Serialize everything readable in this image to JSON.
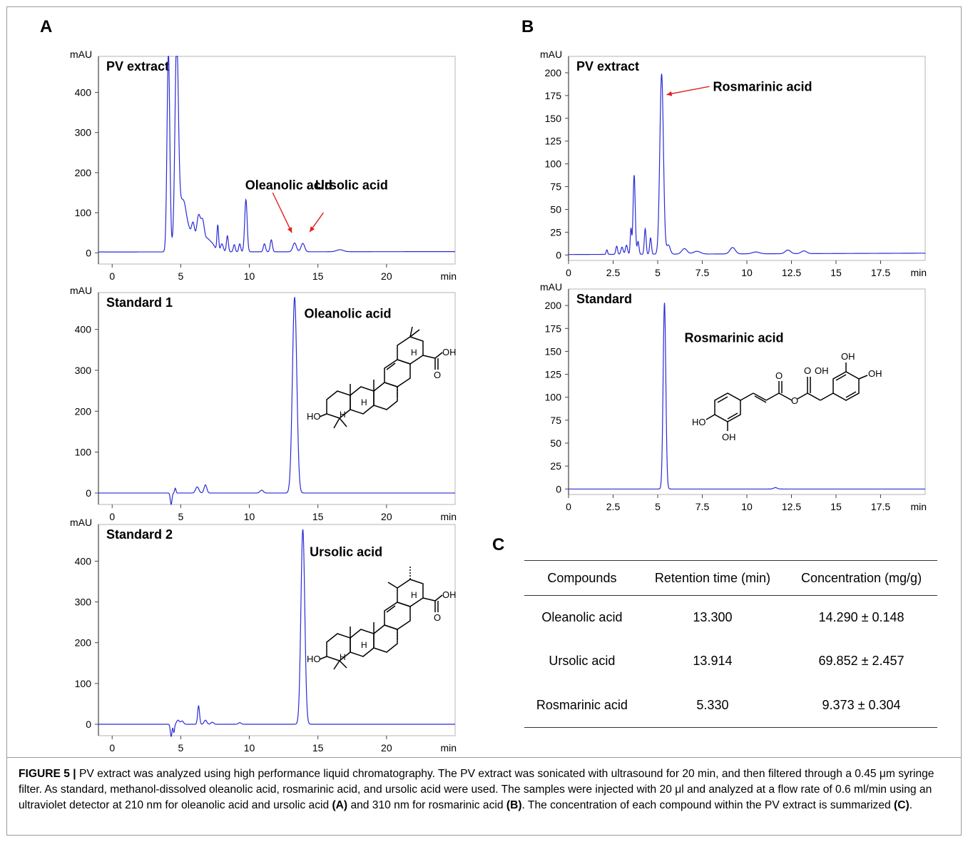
{
  "panels": {
    "A": "A",
    "B": "B",
    "C": "C"
  },
  "chart_data": [
    {
      "id": "chartA1",
      "type": "line",
      "title": "PV extract",
      "ylabel": "mAU",
      "xunit": "min",
      "xlim": [
        -1,
        25
      ],
      "ylim": [
        -28,
        490
      ],
      "xticks": [
        0,
        5,
        10,
        15,
        20
      ],
      "yticks": [
        0,
        100,
        200,
        300,
        400
      ],
      "baseline": 2,
      "tail": 1,
      "color": "#2b2bd6",
      "peaks": [
        {
          "x": 4.1,
          "h": 500,
          "w": 0.1
        },
        {
          "x": 4.7,
          "h": 470,
          "w": 0.12
        },
        {
          "x": 5.0,
          "h": 120,
          "w": 0.3
        },
        {
          "x": 5.3,
          "h": 40,
          "w": 0.15
        },
        {
          "x": 5.6,
          "h": 40,
          "w": 0.15
        },
        {
          "x": 5.9,
          "h": 65,
          "w": 0.12
        },
        {
          "x": 6.3,
          "h": 90,
          "w": 0.15
        },
        {
          "x": 6.6,
          "h": 60,
          "w": 0.12
        },
        {
          "x": 6.9,
          "h": 30,
          "w": 0.2
        },
        {
          "x": 7.3,
          "h": 18,
          "w": 0.2
        },
        {
          "x": 7.7,
          "h": 65,
          "w": 0.06
        },
        {
          "x": 8.0,
          "h": 20,
          "w": 0.1
        },
        {
          "x": 8.4,
          "h": 40,
          "w": 0.07
        },
        {
          "x": 8.9,
          "h": 18,
          "w": 0.07
        },
        {
          "x": 9.3,
          "h": 20,
          "w": 0.07
        },
        {
          "x": 9.75,
          "h": 130,
          "w": 0.09
        },
        {
          "x": 11.1,
          "h": 20,
          "w": 0.08
        },
        {
          "x": 11.6,
          "h": 30,
          "w": 0.08
        },
        {
          "x": 13.3,
          "h": 22,
          "w": 0.13
        },
        {
          "x": 13.9,
          "h": 21,
          "w": 0.13
        },
        {
          "x": 16.6,
          "h": 5,
          "w": 0.25
        }
      ],
      "annotations": [
        {
          "text": "Oleanolic acid",
          "tx": 9.7,
          "ty": 158,
          "ax1": 11.7,
          "ay1": 150,
          "ax2": 13.1,
          "ay2": 50
        },
        {
          "text": "Ursolic acid",
          "tx": 14.8,
          "ty": 158,
          "ax1": 15.4,
          "ay1": 100,
          "ax2": 14.4,
          "ay2": 52
        }
      ]
    },
    {
      "id": "chartA2",
      "type": "line",
      "title": "Standard 1",
      "ylabel": "mAU",
      "xunit": "min",
      "xlim": [
        -1,
        25
      ],
      "ylim": [
        -28,
        490
      ],
      "xticks": [
        0,
        5,
        10,
        15,
        20
      ],
      "yticks": [
        0,
        100,
        200,
        300,
        400
      ],
      "baseline": 0,
      "tail": 0,
      "color": "#2b2bd6",
      "peaks": [
        {
          "x": 4.3,
          "h": -28,
          "w": 0.06
        },
        {
          "x": 4.6,
          "h": 12,
          "w": 0.05
        },
        {
          "x": 6.2,
          "h": 15,
          "w": 0.12
        },
        {
          "x": 6.8,
          "h": 20,
          "w": 0.1
        },
        {
          "x": 10.9,
          "h": 7,
          "w": 0.12
        },
        {
          "x": 13.3,
          "h": 478,
          "w": 0.16
        }
      ],
      "annotations": [
        {
          "text": "Oleanolic acid",
          "tx": 14.0,
          "ty": 428
        }
      ]
    },
    {
      "id": "chartA3",
      "type": "line",
      "title": "Standard 2",
      "ylabel": "mAU",
      "xunit": "min",
      "xlim": [
        -1,
        25
      ],
      "ylim": [
        -28,
        490
      ],
      "xticks": [
        0,
        5,
        10,
        15,
        20
      ],
      "yticks": [
        0,
        100,
        200,
        300,
        400
      ],
      "baseline": 0,
      "tail": 0,
      "color": "#2b2bd6",
      "peaks": [
        {
          "x": 4.3,
          "h": -30,
          "w": 0.06
        },
        {
          "x": 4.5,
          "h": -20,
          "w": 0.05
        },
        {
          "x": 4.8,
          "h": 10,
          "w": 0.1
        },
        {
          "x": 5.1,
          "h": 8,
          "w": 0.1
        },
        {
          "x": 6.3,
          "h": 45,
          "w": 0.07
        },
        {
          "x": 6.8,
          "h": 10,
          "w": 0.1
        },
        {
          "x": 7.3,
          "h": 5,
          "w": 0.1
        },
        {
          "x": 9.3,
          "h": 4,
          "w": 0.1
        },
        {
          "x": 13.9,
          "h": 478,
          "w": 0.14
        }
      ],
      "annotations": [
        {
          "text": "Ursolic acid",
          "tx": 14.4,
          "ty": 412
        }
      ]
    },
    {
      "id": "chartB1",
      "type": "line",
      "title": "PV extract",
      "ylabel": "mAU",
      "xunit": "min",
      "xlim": [
        0,
        20
      ],
      "ylim": [
        -6,
        218
      ],
      "xticks": [
        0,
        2.5,
        5,
        7.5,
        10,
        12.5,
        15,
        17.5
      ],
      "yticks": [
        0,
        25,
        50,
        75,
        100,
        125,
        150,
        175,
        200
      ],
      "baseline": 0.5,
      "tail": 1.5,
      "color": "#2b2bd6",
      "peaks": [
        {
          "x": 2.15,
          "h": 5,
          "w": 0.04
        },
        {
          "x": 2.7,
          "h": 9,
          "w": 0.05
        },
        {
          "x": 3.0,
          "h": 8,
          "w": 0.06
        },
        {
          "x": 3.25,
          "h": 10,
          "w": 0.06
        },
        {
          "x": 3.5,
          "h": 28,
          "w": 0.04
        },
        {
          "x": 3.68,
          "h": 87,
          "w": 0.06
        },
        {
          "x": 3.9,
          "h": 14,
          "w": 0.05
        },
        {
          "x": 4.3,
          "h": 28,
          "w": 0.05
        },
        {
          "x": 4.6,
          "h": 18,
          "w": 0.05
        },
        {
          "x": 5.22,
          "h": 198,
          "w": 0.1
        },
        {
          "x": 5.6,
          "h": 10,
          "w": 0.1
        },
        {
          "x": 6.5,
          "h": 6,
          "w": 0.15
        },
        {
          "x": 7.2,
          "h": 3,
          "w": 0.2
        },
        {
          "x": 9.2,
          "h": 7,
          "w": 0.15
        },
        {
          "x": 10.5,
          "h": 2,
          "w": 0.2
        },
        {
          "x": 12.3,
          "h": 4,
          "w": 0.15
        },
        {
          "x": 13.2,
          "h": 3,
          "w": 0.15
        }
      ],
      "annotations": [
        {
          "text": "Rosmarinic acid",
          "tx": 8.1,
          "ty": 180,
          "ax1": 7.9,
          "ay1": 185,
          "ax2": 5.5,
          "ay2": 176
        }
      ]
    },
    {
      "id": "chartB2",
      "type": "line",
      "title": "Standard",
      "ylabel": "mAU",
      "xunit": "min",
      "xlim": [
        0,
        20
      ],
      "ylim": [
        -6,
        218
      ],
      "xticks": [
        0,
        2.5,
        5,
        7.5,
        10,
        12.5,
        15,
        17.5
      ],
      "yticks": [
        0,
        25,
        50,
        75,
        100,
        125,
        150,
        175,
        200
      ],
      "baseline": 0,
      "tail": 0,
      "color": "#2b2bd6",
      "peaks": [
        {
          "x": 5.38,
          "h": 203,
          "w": 0.075
        },
        {
          "x": 11.6,
          "h": 1.5,
          "w": 0.1
        }
      ],
      "annotations": [
        {
          "text": "Rosmarinic acid",
          "tx": 6.5,
          "ty": 160
        }
      ]
    }
  ],
  "table": {
    "headers": [
      "Compounds",
      "Retention time (min)",
      "Concentration (mg/g)"
    ],
    "rows": [
      [
        "Oleanolic acid",
        "13.300",
        "14.290 ± 0.148"
      ],
      [
        "Ursolic acid",
        "13.914",
        "69.852 ± 2.457"
      ],
      [
        "Rosmarinic acid",
        "5.330",
        "9.373 ± 0.304"
      ]
    ]
  },
  "structure_labels": {
    "ole_oh": "OH",
    "ole_ho": "HO",
    "ole_h": "H",
    "urs_oh": "OH",
    "urs_ho": "HO",
    "urs_h": "H",
    "o": "O",
    "ros_oh": "OH",
    "ros_ho": "HO"
  },
  "caption": {
    "label": "FIGURE 5 |",
    "p1": " PV extract was analyzed using high performance liquid chromatography. The PV extract was sonicated with ultrasound for 20 min, and then filtered through a 0.45 μm syringe filter. As standard, methanol-dissolved oleanolic acid, rosmarinic acid, and ursolic acid were used. The samples were injected with 20 μl and analyzed at a flow rate of 0.6 ml/min using an ultraviolet detector at 210 nm for oleanolic acid and ursolic acid ",
    "refA": "(A)",
    "p2": " and 310 nm for rosmarinic acid ",
    "refB": "(B)",
    "p3": ". The concentration of each compound within the PV extract is summarized ",
    "refC": "(C)",
    "p4": "."
  }
}
